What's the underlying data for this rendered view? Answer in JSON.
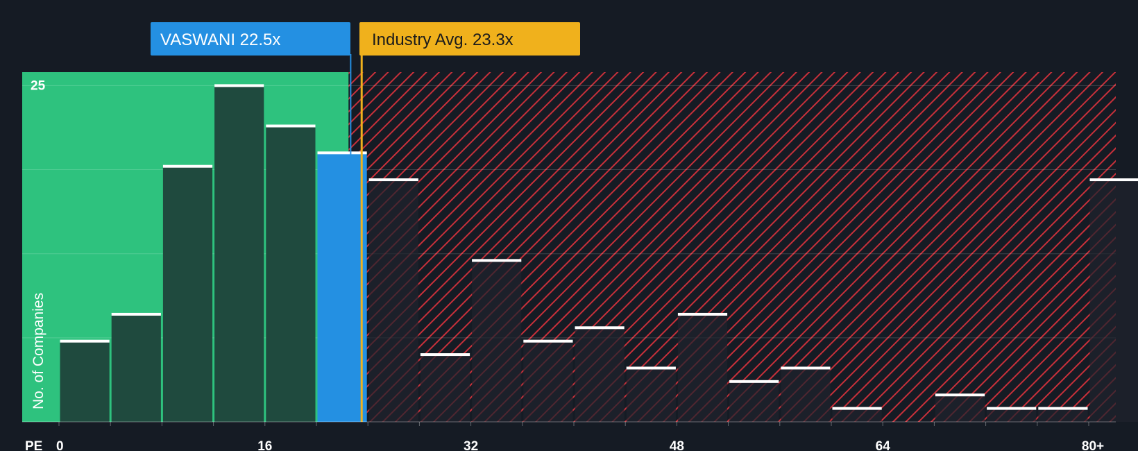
{
  "chart_data": {
    "type": "bar",
    "x_axis_label": "PE",
    "y_axis_label": "No. of Companies",
    "x_ticks": [
      "0",
      "16",
      "32",
      "48",
      "64",
      "80+"
    ],
    "y_ticks": [
      "25"
    ],
    "y_grid": [
      6.25,
      12.5,
      18.75,
      25
    ],
    "ylim": [
      0,
      26
    ],
    "company": {
      "label": "VASWANI 22.5x",
      "pe": 22.5
    },
    "industry_avg": {
      "label": "Industry Avg. 23.3x",
      "pe": 23.3
    },
    "bins": [
      {
        "x0": 0,
        "x1": 4,
        "value": 6
      },
      {
        "x0": 4,
        "x1": 8,
        "value": 8
      },
      {
        "x0": 8,
        "x1": 12,
        "value": 19
      },
      {
        "x0": 12,
        "x1": 16,
        "value": 25
      },
      {
        "x0": 16,
        "x1": 20,
        "value": 22
      },
      {
        "x0": 20,
        "x1": 24,
        "value": 20,
        "highlight": true
      },
      {
        "x0": 24,
        "x1": 28,
        "value": 18
      },
      {
        "x0": 28,
        "x1": 32,
        "value": 5
      },
      {
        "x0": 32,
        "x1": 36,
        "value": 12
      },
      {
        "x0": 36,
        "x1": 40,
        "value": 6
      },
      {
        "x0": 40,
        "x1": 44,
        "value": 7
      },
      {
        "x0": 44,
        "x1": 48,
        "value": 4
      },
      {
        "x0": 48,
        "x1": 52,
        "value": 8
      },
      {
        "x0": 52,
        "x1": 56,
        "value": 3
      },
      {
        "x0": 56,
        "x1": 60,
        "value": 4
      },
      {
        "x0": 60,
        "x1": 64,
        "value": 1
      },
      {
        "x0": 64,
        "x1": 68,
        "value": 0
      },
      {
        "x0": 68,
        "x1": 72,
        "value": 2
      },
      {
        "x0": 72,
        "x1": 76,
        "value": 1
      },
      {
        "x0": 76,
        "x1": 80,
        "value": 1
      },
      {
        "x0": 80,
        "x1": 84,
        "value": 18
      }
    ],
    "colors": {
      "background": "#151b24",
      "undervalued_zone": "#2ec27e",
      "overvalued_hatch": "#c8303a",
      "bar_green_zone": "#1f4a3e",
      "bar_red_zone": "#20222d",
      "company_bar": "#2490e2",
      "company_badge": "#2490e2",
      "industry_badge": "#f0b11c",
      "bar_cap": "#ffffff"
    }
  }
}
